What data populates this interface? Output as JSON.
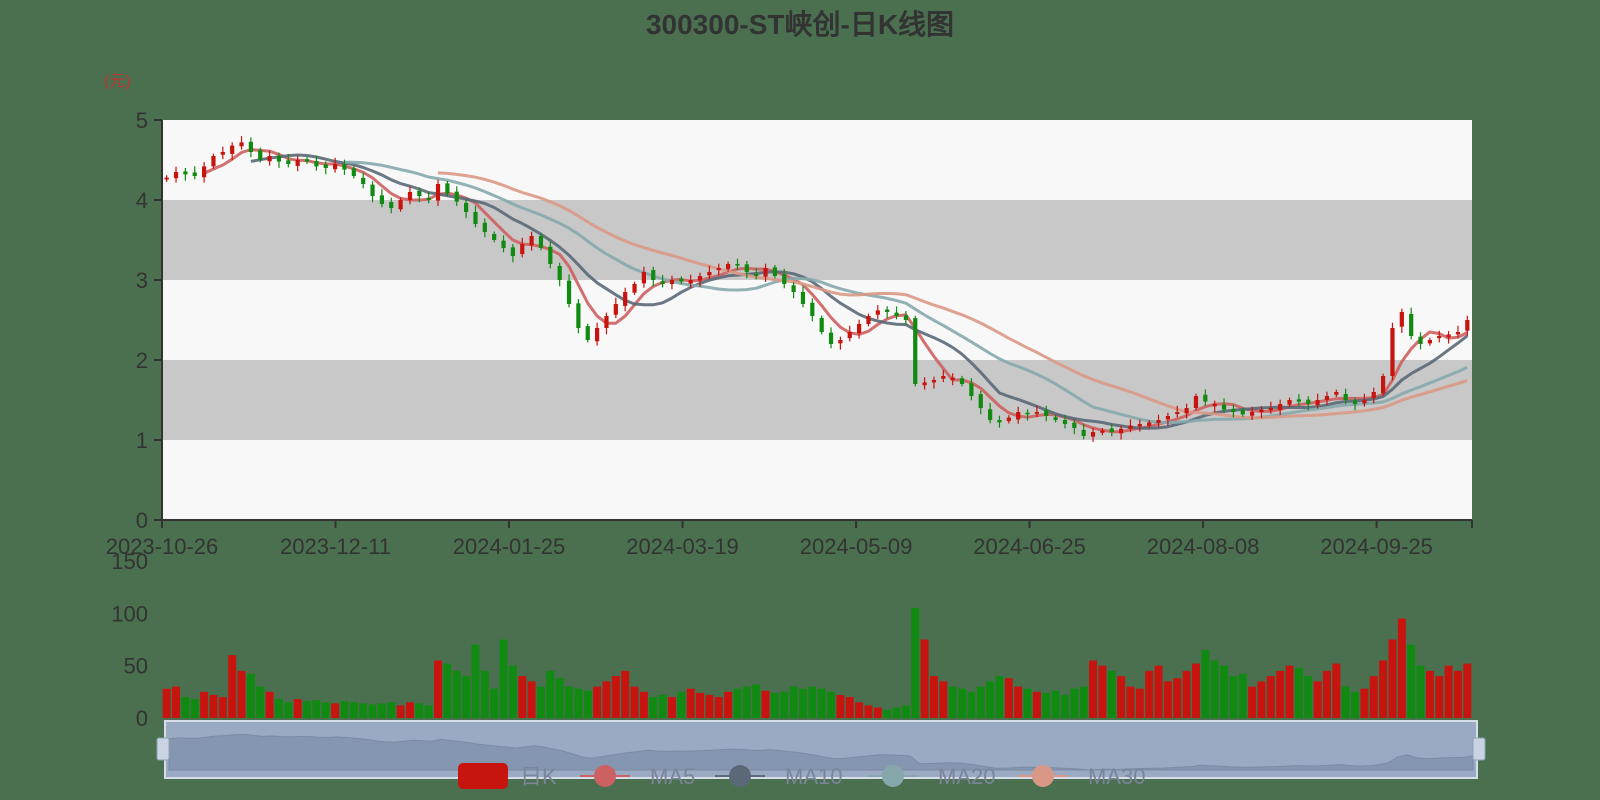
{
  "chart_data": {
    "type": "candlestick",
    "title": "300300-ST峡创-日K线图",
    "unit_label": "(元)",
    "price_axis": {
      "ylim": [
        0,
        5
      ],
      "ticks": [
        "0",
        "1",
        "2",
        "3",
        "4",
        "5"
      ]
    },
    "volume_axis": {
      "ylim": [
        0,
        150
      ],
      "ticks": [
        "0",
        "50",
        "100",
        "150"
      ]
    },
    "x_tick_labels": [
      "2023-10-26",
      "2023-12-11",
      "2024-01-25",
      "2024-03-19",
      "2024-05-09",
      "2024-06-25",
      "2024-08-08",
      "2024-09-25"
    ],
    "legend": [
      "日K",
      "MA5",
      "MA10",
      "MA20",
      "MA30"
    ],
    "colors": {
      "up": "#c8140f",
      "down": "#118a11",
      "MA5": "#cd6060",
      "MA10": "#5a6878",
      "MA20": "#86a8ad",
      "MA30": "#d99885",
      "band_light": "#f8f8f8",
      "band_dark": "#c8c8c8"
    },
    "close_series": [
      4.28,
      4.35,
      4.32,
      4.3,
      4.42,
      4.55,
      4.6,
      4.68,
      4.72,
      4.6,
      4.5,
      4.55,
      4.48,
      4.45,
      4.5,
      4.48,
      4.42,
      4.4,
      4.45,
      4.38,
      4.3,
      4.2,
      4.05,
      3.95,
      3.9,
      4.0,
      4.1,
      4.05,
      4.0,
      4.2,
      4.08,
      3.98,
      3.85,
      3.7,
      3.6,
      3.5,
      3.4,
      3.3,
      3.45,
      3.55,
      3.4,
      3.2,
      3.0,
      2.7,
      2.4,
      2.25,
      2.4,
      2.55,
      2.7,
      2.85,
      2.95,
      3.1,
      3.0,
      2.95,
      3.0,
      2.98,
      3.0,
      3.05,
      3.1,
      3.15,
      3.2,
      3.18,
      3.1,
      3.05,
      3.15,
      3.05,
      2.95,
      2.85,
      2.7,
      2.55,
      2.35,
      2.2,
      2.25,
      2.35,
      2.45,
      2.55,
      2.62,
      2.6,
      2.55,
      2.5,
      1.7,
      1.72,
      1.75,
      1.8,
      1.78,
      1.7,
      1.55,
      1.4,
      1.25,
      1.22,
      1.28,
      1.35,
      1.32,
      1.35,
      1.3,
      1.25,
      1.2,
      1.15,
      1.05,
      1.1,
      1.12,
      1.1,
      1.14,
      1.18,
      1.2,
      1.22,
      1.25,
      1.3,
      1.35,
      1.4,
      1.55,
      1.48,
      1.45,
      1.38,
      1.35,
      1.32,
      1.35,
      1.38,
      1.4,
      1.45,
      1.5,
      1.48,
      1.45,
      1.5,
      1.55,
      1.6,
      1.5,
      1.45,
      1.5,
      1.6,
      1.8,
      2.4,
      2.6,
      2.3,
      2.2,
      2.25,
      2.3,
      2.32,
      2.35,
      2.5
    ],
    "volume_series": [
      28,
      30,
      20,
      18,
      25,
      22,
      20,
      60,
      45,
      42,
      30,
      25,
      18,
      15,
      18,
      16,
      17,
      15,
      14,
      16,
      15,
      14,
      13,
      14,
      15,
      12,
      15,
      14,
      12,
      55,
      52,
      45,
      40,
      70,
      45,
      28,
      75,
      50,
      40,
      35,
      30,
      45,
      38,
      30,
      28,
      26,
      30,
      35,
      40,
      45,
      30,
      25,
      20,
      22,
      20,
      25,
      28,
      24,
      22,
      20,
      25,
      28,
      30,
      32,
      26,
      24,
      25,
      30,
      28,
      30,
      28,
      25,
      22,
      20,
      15,
      12,
      10,
      8,
      10,
      12,
      105,
      75,
      40,
      35,
      30,
      28,
      25,
      30,
      35,
      40,
      38,
      30,
      28,
      25,
      24,
      26,
      22,
      28,
      30,
      55,
      50,
      45,
      40,
      30,
      28,
      45,
      50,
      35,
      38,
      45,
      52,
      65,
      55,
      50,
      40,
      42,
      30,
      35,
      40,
      45,
      50,
      48,
      40,
      35,
      45,
      52,
      30,
      25,
      28,
      40,
      55,
      75,
      95,
      70,
      50,
      45,
      40,
      50,
      45,
      52
    ]
  }
}
